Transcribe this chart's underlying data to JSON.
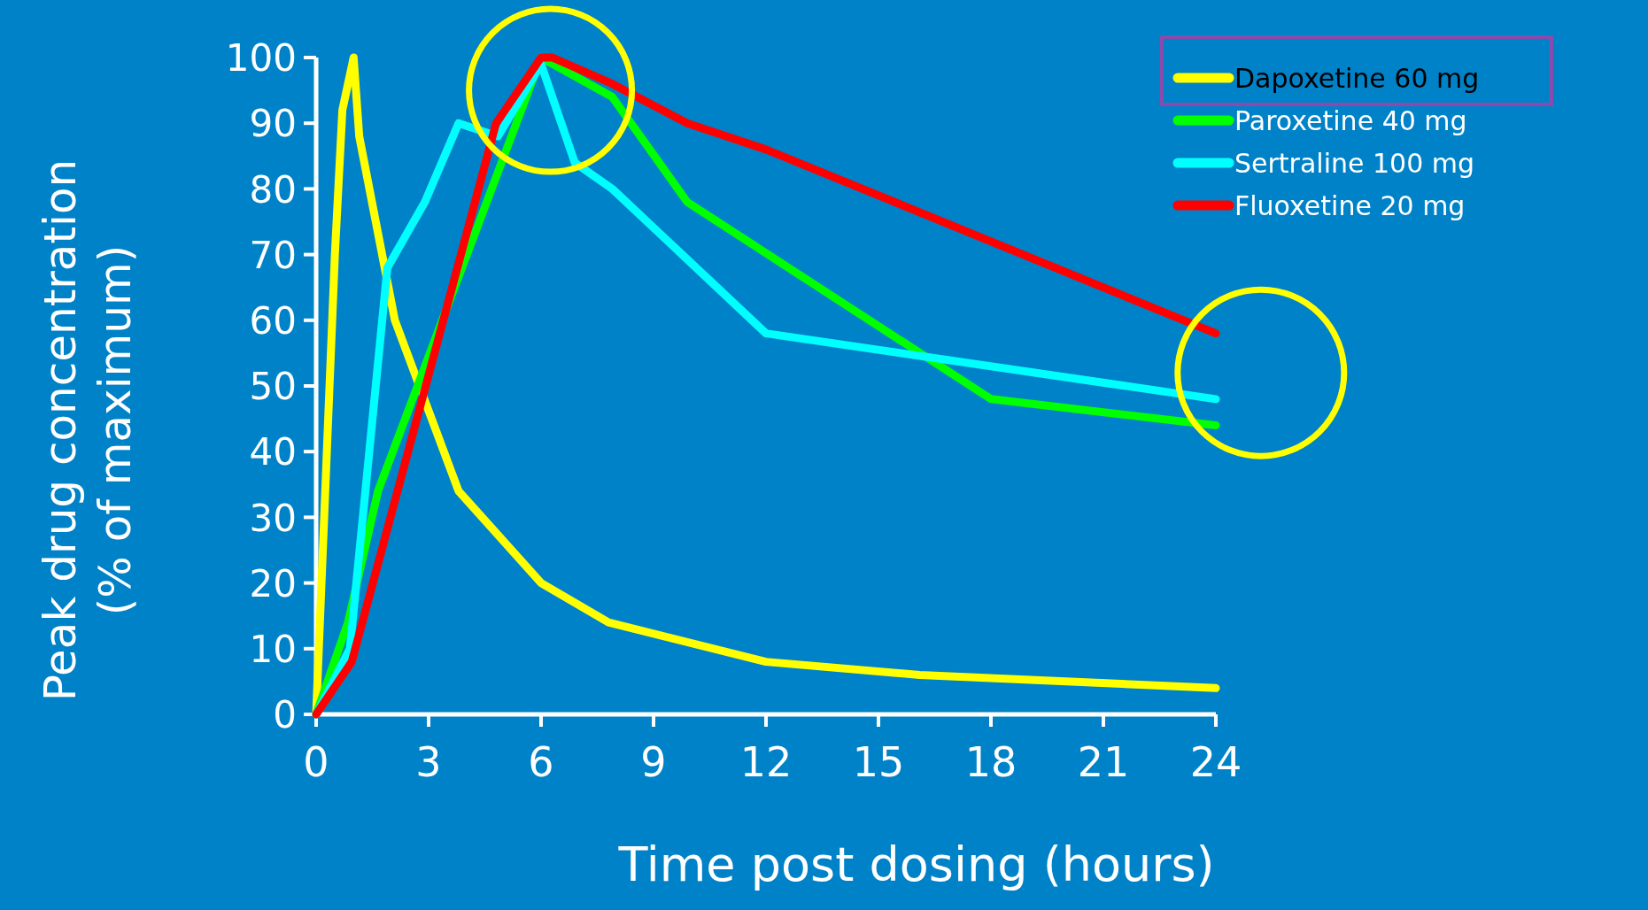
{
  "chart_data": {
    "type": "line",
    "xlabel": "Time post dosing (hours)",
    "ylabel": "Peak drug concentration\n(% of maximum)",
    "xlim": [
      0,
      24
    ],
    "xticks": [
      0,
      3,
      6,
      9,
      12,
      15,
      18,
      21,
      24
    ],
    "ylim": [
      0,
      100
    ],
    "yticks": [
      0,
      10,
      20,
      30,
      40,
      50,
      60,
      70,
      80,
      90,
      100
    ],
    "grid": false,
    "legend": "top right",
    "marker": "none",
    "line_style": "solid",
    "series": [
      {
        "name": "Dapoxetine 60 mg",
        "color": "#ffff00",
        "x": [
          0,
          0.5,
          0.7,
          1,
          1.15,
          2.1,
          3.8,
          6,
          7.8,
          12,
          16.1,
          24
        ],
        "values": [
          0,
          70,
          92,
          100,
          88,
          60,
          34,
          20,
          14,
          8,
          6,
          4
        ]
      },
      {
        "name": "Paroxetine 40 mg",
        "color": "#00ff00",
        "x": [
          0,
          0.85,
          1.65,
          6,
          7.9,
          9.9,
          18,
          24
        ],
        "values": [
          0,
          14,
          34,
          100,
          94,
          78,
          48,
          44
        ]
      },
      {
        "name": "Sertraline 100 mg",
        "color": "#00ffff",
        "x": [
          0,
          0.9,
          1.9,
          2.9,
          3.8,
          4.85,
          6,
          6.9,
          7.9,
          12,
          24
        ],
        "values": [
          0,
          10,
          68,
          78,
          90,
          88,
          99,
          84,
          80,
          58,
          48
        ]
      },
      {
        "name": "Fluoxetine 20 mg",
        "color": "#ff0000",
        "x": [
          0,
          0.95,
          4.8,
          6,
          6.3,
          7.9,
          9.9,
          12,
          24
        ],
        "values": [
          0,
          8,
          90,
          100,
          100,
          96,
          90,
          86,
          58
        ]
      }
    ]
  }
}
